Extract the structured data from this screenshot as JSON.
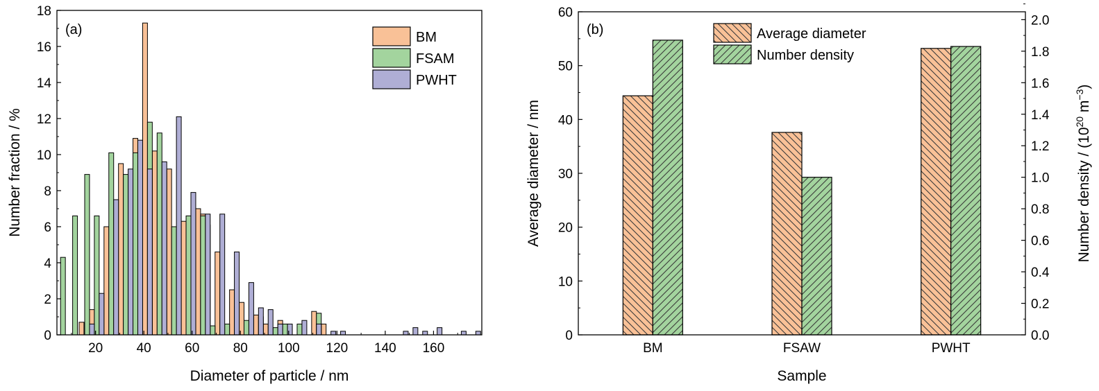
{
  "chart_data": [
    {
      "type": "bar",
      "panel_label": "(a)",
      "xlabel": "Diameter of particle / nm",
      "ylabel": "Number fraction / %",
      "xlim": [
        4,
        180
      ],
      "ylim": [
        0,
        18
      ],
      "xticks": [
        20,
        40,
        60,
        80,
        100,
        120,
        140,
        160
      ],
      "yticks": [
        0,
        2,
        4,
        6,
        8,
        10,
        12,
        14,
        16,
        18
      ],
      "bin_width": 6,
      "legend_position": "top-right",
      "series": [
        {
          "name": "BM",
          "color": "#F9C197",
          "points": [
            [
              14.2,
              0.7
            ],
            [
              18.5,
              1.4
            ],
            [
              24.5,
              6.0
            ],
            [
              30.5,
              9.5
            ],
            [
              36.5,
              10.9
            ],
            [
              40.5,
              17.3
            ],
            [
              44.5,
              10.2
            ],
            [
              50.5,
              9.2
            ],
            [
              56.5,
              6.3
            ],
            [
              62.5,
              7.0
            ],
            [
              64.5,
              6.7
            ],
            [
              66.5,
              6.1
            ],
            [
              70.5,
              4.6
            ],
            [
              76.5,
              2.5
            ],
            [
              80.5,
              1.8
            ],
            [
              86.5,
              1.1
            ],
            [
              90.5,
              0.6
            ],
            [
              96.5,
              0.8
            ],
            [
              100.5,
              0.5
            ],
            [
              104.5,
              0.4
            ],
            [
              110.5,
              1.3
            ],
            [
              114.5,
              0.6
            ]
          ]
        },
        {
          "name": "FSAM",
          "color": "#A3D49E",
          "points": [
            [
              6.5,
              4.3
            ],
            [
              11.5,
              6.6
            ],
            [
              16.5,
              8.9
            ],
            [
              20.5,
              6.6
            ],
            [
              26.5,
              10.1
            ],
            [
              32.5,
              8.9
            ],
            [
              36.5,
              10.1
            ],
            [
              42.5,
              11.8
            ],
            [
              46.5,
              11.2
            ],
            [
              52.5,
              6.0
            ],
            [
              58.5,
              6.6
            ],
            [
              64.5,
              6.6
            ],
            [
              68.5,
              0.5
            ],
            [
              74.5,
              0.6
            ],
            [
              78.5,
              1.6
            ],
            [
              82.5,
              0.8
            ],
            [
              88.5,
              1.0
            ],
            [
              94.5,
              0.4
            ],
            [
              98.5,
              0.6
            ],
            [
              104.5,
              0.6
            ],
            [
              112.5,
              1.2
            ]
          ]
        },
        {
          "name": "PWHT",
          "color": "#AFAED5",
          "points": [
            [
              18.5,
              0.6
            ],
            [
              22.5,
              2.3
            ],
            [
              28.5,
              7.5
            ],
            [
              34.5,
              9.2
            ],
            [
              38.5,
              10.8
            ],
            [
              42.5,
              9.2
            ],
            [
              48.5,
              9.6
            ],
            [
              54.5,
              12.1
            ],
            [
              60.5,
              7.9
            ],
            [
              66.5,
              6.7
            ],
            [
              72.5,
              6.7
            ],
            [
              78.5,
              4.6
            ],
            [
              84.5,
              2.9
            ],
            [
              88.5,
              1.5
            ],
            [
              92.5,
              1.4
            ],
            [
              96.5,
              0.6
            ],
            [
              100.5,
              0.6
            ],
            [
              106.5,
              0.8
            ],
            [
              112.5,
              0.6
            ],
            [
              118.5,
              0.2
            ],
            [
              122.5,
              0.2
            ],
            [
              148.5,
              0.2
            ],
            [
              152.5,
              0.4
            ],
            [
              156.5,
              0.2
            ],
            [
              162.5,
              0.4
            ],
            [
              172.5,
              0.2
            ],
            [
              178.5,
              0.2
            ]
          ]
        }
      ]
    },
    {
      "type": "bar",
      "panel_label": "(b)",
      "xlabel": "Sample",
      "ylabel": "Average diameter / nm",
      "y2label": "Number density / (10",
      "y2label_sup": "20",
      "y2label_unit": " m",
      "y2label_unit_sup": "−3",
      "y2label_close": ")",
      "categories": [
        "BM",
        "FSAW",
        "PWHT"
      ],
      "ylim": [
        0,
        60
      ],
      "y2lim": [
        0,
        2.05
      ],
      "yticks": [
        0,
        10,
        20,
        30,
        40,
        50,
        60
      ],
      "y2ticks": [
        "0.0",
        "0.2",
        "0.4",
        "0.6",
        "0.8",
        "1.0",
        "1.2",
        "1.4",
        "1.6",
        "1.8",
        "2.0"
      ],
      "legend_position": "top-center",
      "series": [
        {
          "name": "Average diameter",
          "axis": "left",
          "color": "#F9C197",
          "hatch": "back-diagonal",
          "values": [
            44.4,
            37.6,
            53.2
          ]
        },
        {
          "name": "Number density",
          "axis": "right",
          "color": "#A3D49E",
          "hatch": "diagonal",
          "values": [
            1.87,
            1.0,
            1.83
          ]
        }
      ]
    }
  ]
}
